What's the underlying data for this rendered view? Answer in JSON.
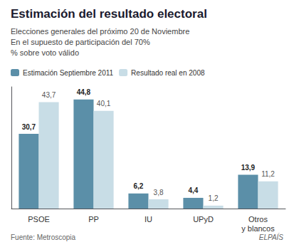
{
  "chart_data": {
    "type": "bar",
    "title": "Estimación del resultado electoral",
    "subtitle": [
      "Elecciones generales del próximo 20 de Noviembre",
      "En el supuesto de participación del 70%",
      "% sobre voto válido"
    ],
    "annotations": [
      "Fuente: Metroscopia",
      "ELPAÍS"
    ],
    "categories": [
      "PSOE",
      "PP",
      "IU",
      "UPyD",
      "Otros\ny blancos"
    ],
    "series": [
      {
        "name": "Estimación Septiembre 2011",
        "color": "#5b8fa8",
        "values": [
          30.7,
          44.8,
          6.2,
          4.4,
          13.9
        ],
        "value_labels": [
          "30,7",
          "44,8",
          "6,2",
          "4,4",
          "13,9"
        ]
      },
      {
        "name": "Resultado real en 2008",
        "color": "#c8dde6",
        "values": [
          43.7,
          40.1,
          3.8,
          1.2,
          11.2
        ],
        "value_labels": [
          "43,7",
          "40,1",
          "3,8",
          "1,2",
          "11,2"
        ]
      }
    ],
    "ylim": [
      0,
      50
    ],
    "grid": false,
    "legend": "upper left",
    "data_labels": true,
    "tick_labels": "x"
  }
}
